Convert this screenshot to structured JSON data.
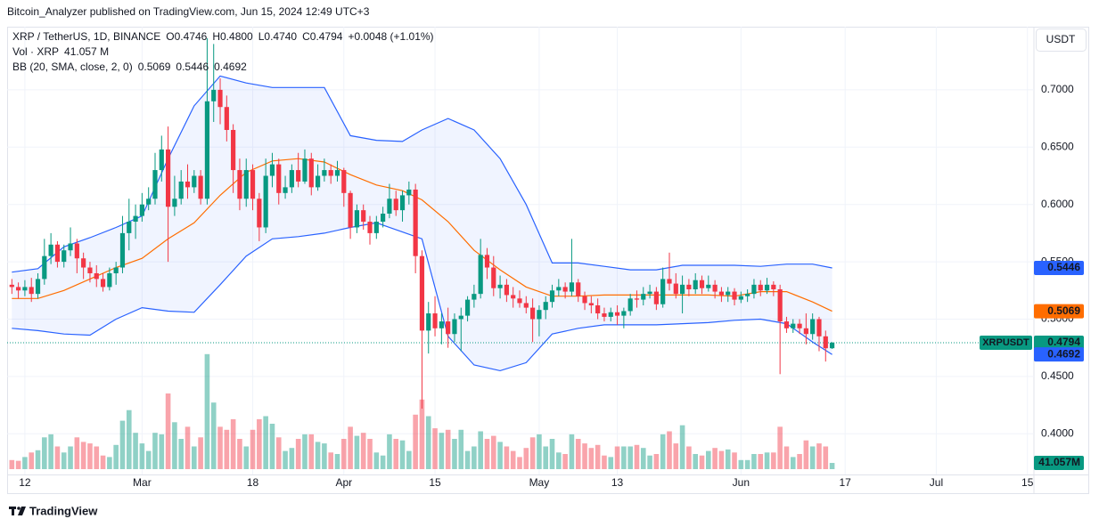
{
  "chart_data": {
    "type": "candlestick",
    "source": "Bitcoin_Analyzer published on TradingView.com, Jun 15, 2024 12:49 UTC+3",
    "brand": "TradingView",
    "currency": "USDT",
    "symbol_tag": "XRPUSDT",
    "legend": {
      "symbol": "XRP / TetherUS, 1D, BINANCE",
      "values": [
        "O0.4746",
        "H0.4800",
        "L0.4740",
        "C0.4794",
        "+0.0048 (+1.01%)"
      ],
      "volume_name": "Vol · XRP",
      "volume_value": "41.057 M"
    },
    "up_color": "#089981",
    "down_color": "#f23645",
    "x": [
      "2024-02-10",
      "2024-02-11",
      "2024-02-12",
      "2024-02-13",
      "2024-02-14",
      "2024-02-15",
      "2024-02-16",
      "2024-02-17",
      "2024-02-18",
      "2024-02-19",
      "2024-02-20",
      "2024-02-21",
      "2024-02-22",
      "2024-02-23",
      "2024-02-24",
      "2024-02-25",
      "2024-02-26",
      "2024-02-27",
      "2024-02-28",
      "2024-02-29",
      "2024-03-01",
      "2024-03-02",
      "2024-03-03",
      "2024-03-04",
      "2024-03-05",
      "2024-03-06",
      "2024-03-07",
      "2024-03-08",
      "2024-03-09",
      "2024-03-10",
      "2024-03-11",
      "2024-03-12",
      "2024-03-13",
      "2024-03-14",
      "2024-03-15",
      "2024-03-16",
      "2024-03-17",
      "2024-03-18",
      "2024-03-19",
      "2024-03-20",
      "2024-03-21",
      "2024-03-22",
      "2024-03-23",
      "2024-03-24",
      "2024-03-25",
      "2024-03-26",
      "2024-03-27",
      "2024-03-28",
      "2024-03-29",
      "2024-03-30",
      "2024-03-31",
      "2024-04-01",
      "2024-04-02",
      "2024-04-03",
      "2024-04-04",
      "2024-04-05",
      "2024-04-06",
      "2024-04-07",
      "2024-04-08",
      "2024-04-09",
      "2024-04-10",
      "2024-04-11",
      "2024-04-12",
      "2024-04-13",
      "2024-04-14",
      "2024-04-15",
      "2024-04-16",
      "2024-04-17",
      "2024-04-18",
      "2024-04-19",
      "2024-04-20",
      "2024-04-21",
      "2024-04-22",
      "2024-04-23",
      "2024-04-24",
      "2024-04-25",
      "2024-04-26",
      "2024-04-27",
      "2024-04-28",
      "2024-04-29",
      "2024-04-30",
      "2024-05-01",
      "2024-05-02",
      "2024-05-03",
      "2024-05-04",
      "2024-05-05",
      "2024-05-06",
      "2024-05-07",
      "2024-05-08",
      "2024-05-09",
      "2024-05-10",
      "2024-05-11",
      "2024-05-12",
      "2024-05-13",
      "2024-05-14",
      "2024-05-15",
      "2024-05-16",
      "2024-05-17",
      "2024-05-18",
      "2024-05-19",
      "2024-05-20",
      "2024-05-21",
      "2024-05-22",
      "2024-05-23",
      "2024-05-24",
      "2024-05-25",
      "2024-05-26",
      "2024-05-27",
      "2024-05-28",
      "2024-05-29",
      "2024-05-30",
      "2024-05-31",
      "2024-06-01",
      "2024-06-02",
      "2024-06-03",
      "2024-06-04",
      "2024-06-05",
      "2024-06-06",
      "2024-06-07",
      "2024-06-08",
      "2024-06-09",
      "2024-06-10",
      "2024-06-11",
      "2024-06-12",
      "2024-06-13",
      "2024-06-14",
      "2024-06-15"
    ],
    "open": [
      0.53,
      0.528,
      0.525,
      0.528,
      0.522,
      0.535,
      0.555,
      0.565,
      0.55,
      0.56,
      0.566,
      0.553,
      0.545,
      0.54,
      0.535,
      0.528,
      0.54,
      0.545,
      0.575,
      0.585,
      0.59,
      0.6,
      0.605,
      0.63,
      0.648,
      0.598,
      0.605,
      0.62,
      0.615,
      0.625,
      0.605,
      0.69,
      0.7,
      0.685,
      0.665,
      0.63,
      0.605,
      0.63,
      0.605,
      0.58,
      0.625,
      0.635,
      0.61,
      0.615,
      0.63,
      0.62,
      0.64,
      0.615,
      0.625,
      0.63,
      0.625,
      0.63,
      0.61,
      0.58,
      0.595,
      0.585,
      0.575,
      0.585,
      0.592,
      0.605,
      0.595,
      0.608,
      0.613,
      0.555,
      0.49,
      0.505,
      0.492,
      0.498,
      0.487,
      0.5,
      0.503,
      0.517,
      0.522,
      0.556,
      0.545,
      0.527,
      0.53,
      0.521,
      0.518,
      0.514,
      0.51,
      0.5,
      0.508,
      0.515,
      0.525,
      0.528,
      0.524,
      0.532,
      0.52,
      0.514,
      0.512,
      0.505,
      0.502,
      0.506,
      0.503,
      0.507,
      0.518,
      0.517,
      0.522,
      0.524,
      0.513,
      0.535,
      0.531,
      0.522,
      0.53,
      0.526,
      0.534,
      0.527,
      0.53,
      0.524,
      0.521,
      0.524,
      0.517,
      0.52,
      0.522,
      0.53,
      0.525,
      0.53,
      0.526,
      0.498,
      0.492,
      0.496,
      0.492,
      0.487,
      0.5,
      0.485,
      0.4746
    ],
    "high": [
      0.535,
      0.532,
      0.534,
      0.536,
      0.54,
      0.57,
      0.575,
      0.568,
      0.565,
      0.58,
      0.57,
      0.558,
      0.55,
      0.547,
      0.54,
      0.545,
      0.55,
      0.59,
      0.605,
      0.6,
      0.61,
      0.615,
      0.645,
      0.66,
      0.668,
      0.625,
      0.63,
      0.635,
      0.63,
      0.63,
      0.745,
      0.74,
      0.71,
      0.695,
      0.67,
      0.64,
      0.64,
      0.635,
      0.61,
      0.64,
      0.645,
      0.64,
      0.625,
      0.635,
      0.645,
      0.648,
      0.645,
      0.635,
      0.64,
      0.635,
      0.638,
      0.632,
      0.612,
      0.6,
      0.6,
      0.59,
      0.59,
      0.598,
      0.618,
      0.612,
      0.612,
      0.62,
      0.618,
      0.56,
      0.515,
      0.52,
      0.505,
      0.51,
      0.505,
      0.51,
      0.52,
      0.53,
      0.57,
      0.562,
      0.555,
      0.538,
      0.535,
      0.528,
      0.525,
      0.52,
      0.518,
      0.512,
      0.52,
      0.53,
      0.535,
      0.532,
      0.57,
      0.535,
      0.524,
      0.52,
      0.518,
      0.51,
      0.51,
      0.512,
      0.51,
      0.522,
      0.525,
      0.528,
      0.53,
      0.528,
      0.545,
      0.558,
      0.54,
      0.538,
      0.535,
      0.54,
      0.538,
      0.538,
      0.534,
      0.528,
      0.528,
      0.527,
      0.524,
      0.526,
      0.535,
      0.534,
      0.536,
      0.533,
      0.53,
      0.502,
      0.5,
      0.5,
      0.505,
      0.505,
      0.502,
      0.49,
      0.48
    ],
    "low": [
      0.522,
      0.518,
      0.52,
      0.515,
      0.518,
      0.53,
      0.548,
      0.545,
      0.545,
      0.555,
      0.54,
      0.535,
      0.532,
      0.528,
      0.524,
      0.525,
      0.53,
      0.54,
      0.56,
      0.57,
      0.585,
      0.595,
      0.6,
      0.62,
      0.55,
      0.59,
      0.6,
      0.605,
      0.61,
      0.6,
      0.6,
      0.672,
      0.67,
      0.655,
      0.61,
      0.595,
      0.598,
      0.595,
      0.568,
      0.575,
      0.615,
      0.6,
      0.605,
      0.61,
      0.615,
      0.618,
      0.608,
      0.612,
      0.62,
      0.618,
      0.62,
      0.598,
      0.57,
      0.575,
      0.578,
      0.565,
      0.57,
      0.58,
      0.588,
      0.59,
      0.585,
      0.6,
      0.54,
      0.422,
      0.47,
      0.485,
      0.478,
      0.475,
      0.48,
      0.472,
      0.498,
      0.51,
      0.518,
      0.535,
      0.52,
      0.518,
      0.515,
      0.51,
      0.51,
      0.505,
      0.48,
      0.485,
      0.5,
      0.51,
      0.52,
      0.518,
      0.52,
      0.515,
      0.508,
      0.505,
      0.5,
      0.498,
      0.498,
      0.495,
      0.492,
      0.503,
      0.51,
      0.512,
      0.518,
      0.508,
      0.51,
      0.525,
      0.518,
      0.505,
      0.52,
      0.522,
      0.522,
      0.524,
      0.518,
      0.515,
      0.515,
      0.512,
      0.514,
      0.515,
      0.518,
      0.52,
      0.522,
      0.52,
      0.452,
      0.488,
      0.488,
      0.487,
      0.478,
      0.482,
      0.472,
      0.463,
      0.474
    ],
    "close": [
      0.528,
      0.525,
      0.528,
      0.522,
      0.535,
      0.555,
      0.565,
      0.55,
      0.56,
      0.566,
      0.553,
      0.545,
      0.54,
      0.535,
      0.528,
      0.54,
      0.545,
      0.575,
      0.585,
      0.59,
      0.6,
      0.605,
      0.63,
      0.648,
      0.598,
      0.605,
      0.62,
      0.615,
      0.625,
      0.605,
      0.69,
      0.7,
      0.685,
      0.665,
      0.63,
      0.605,
      0.63,
      0.605,
      0.58,
      0.625,
      0.635,
      0.61,
      0.615,
      0.63,
      0.62,
      0.64,
      0.615,
      0.625,
      0.63,
      0.625,
      0.63,
      0.61,
      0.58,
      0.595,
      0.585,
      0.575,
      0.585,
      0.592,
      0.605,
      0.595,
      0.608,
      0.613,
      0.555,
      0.49,
      0.505,
      0.492,
      0.498,
      0.487,
      0.5,
      0.503,
      0.517,
      0.522,
      0.556,
      0.545,
      0.527,
      0.53,
      0.521,
      0.518,
      0.514,
      0.51,
      0.5,
      0.508,
      0.515,
      0.525,
      0.528,
      0.524,
      0.532,
      0.52,
      0.514,
      0.512,
      0.505,
      0.502,
      0.506,
      0.503,
      0.507,
      0.518,
      0.517,
      0.522,
      0.524,
      0.513,
      0.535,
      0.531,
      0.522,
      0.53,
      0.526,
      0.534,
      0.527,
      0.53,
      0.524,
      0.521,
      0.524,
      0.517,
      0.52,
      0.522,
      0.53,
      0.525,
      0.53,
      0.526,
      0.498,
      0.492,
      0.496,
      0.492,
      0.487,
      0.5,
      0.485,
      0.4746,
      0.4794
    ],
    "volume": [
      60,
      55,
      80,
      110,
      125,
      210,
      230,
      150,
      110,
      150,
      210,
      180,
      170,
      150,
      90,
      80,
      160,
      320,
      390,
      240,
      170,
      120,
      240,
      230,
      500,
      310,
      200,
      280,
      150,
      210,
      760,
      440,
      280,
      260,
      330,
      200,
      150,
      260,
      330,
      350,
      300,
      210,
      120,
      140,
      200,
      230,
      230,
      180,
      170,
      110,
      100,
      200,
      280,
      220,
      240,
      200,
      110,
      90,
      230,
      200,
      190,
      120,
      360,
      460,
      350,
      270,
      240,
      260,
      200,
      260,
      120,
      150,
      250,
      200,
      220,
      180,
      150,
      120,
      80,
      140,
      210,
      230,
      150,
      200,
      110,
      100,
      230,
      200,
      170,
      140,
      160,
      90,
      80,
      150,
      150,
      150,
      160,
      140,
      90,
      100,
      230,
      250,
      170,
      290,
      150,
      100,
      90,
      120,
      140,
      120,
      130,
      110,
      60,
      60,
      100,
      100,
      110,
      110,
      280,
      150,
      80,
      100,
      190,
      150,
      170,
      150,
      41.057
    ],
    "volume_last_label": "41.057M",
    "bb": {
      "name": "BB (20, SMA, close, 2, 0)",
      "band_color": "#2962ff",
      "middle_color": "#ff6d00",
      "x": [
        "2024-02-10",
        "2024-02-14",
        "2024-02-18",
        "2024-02-22",
        "2024-02-26",
        "2024-03-01",
        "2024-03-05",
        "2024-03-09",
        "2024-03-13",
        "2024-03-17",
        "2024-03-21",
        "2024-03-25",
        "2024-03-29",
        "2024-04-02",
        "2024-04-06",
        "2024-04-10",
        "2024-04-13",
        "2024-04-17",
        "2024-04-21",
        "2024-04-25",
        "2024-04-29",
        "2024-05-03",
        "2024-05-07",
        "2024-05-11",
        "2024-05-15",
        "2024-05-19",
        "2024-05-23",
        "2024-05-27",
        "2024-05-31",
        "2024-06-04",
        "2024-06-08",
        "2024-06-12",
        "2024-06-15"
      ],
      "upper": [
        0.541,
        0.544,
        0.563,
        0.571,
        0.58,
        0.59,
        0.64,
        0.686,
        0.712,
        0.706,
        0.702,
        0.702,
        0.702,
        0.66,
        0.656,
        0.655,
        0.665,
        0.675,
        0.665,
        0.64,
        0.6,
        0.549,
        0.549,
        0.546,
        0.543,
        0.543,
        0.547,
        0.547,
        0.547,
        0.546,
        0.548,
        0.548,
        0.5446
      ],
      "middle": [
        0.518,
        0.518,
        0.525,
        0.535,
        0.545,
        0.553,
        0.57,
        0.584,
        0.608,
        0.628,
        0.638,
        0.64,
        0.637,
        0.626,
        0.617,
        0.612,
        0.604,
        0.585,
        0.56,
        0.543,
        0.528,
        0.52,
        0.52,
        0.521,
        0.521,
        0.521,
        0.521,
        0.521,
        0.52,
        0.524,
        0.524,
        0.515,
        0.5069
      ],
      "lower": [
        0.492,
        0.49,
        0.487,
        0.486,
        0.5,
        0.51,
        0.507,
        0.506,
        0.53,
        0.555,
        0.57,
        0.572,
        0.575,
        0.58,
        0.584,
        0.576,
        0.57,
        0.485,
        0.46,
        0.455,
        0.462,
        0.487,
        0.492,
        0.495,
        0.495,
        0.495,
        0.496,
        0.497,
        0.499,
        0.5,
        0.496,
        0.48,
        0.4692
      ]
    },
    "xlim": [
      "2024-02-09",
      "2024-07-16"
    ],
    "xticks": [
      {
        "value": "2024-02-12",
        "label": "12"
      },
      {
        "value": "2024-03-01",
        "label": "Mar"
      },
      {
        "value": "2024-03-18",
        "label": "18"
      },
      {
        "value": "2024-04-01",
        "label": "Apr"
      },
      {
        "value": "2024-04-15",
        "label": "15"
      },
      {
        "value": "2024-05-01",
        "label": "May"
      },
      {
        "value": "2024-05-13",
        "label": "13"
      },
      {
        "value": "2024-06-01",
        "label": "Jun"
      },
      {
        "value": "2024-06-17",
        "label": "17"
      },
      {
        "value": "2024-07-01",
        "label": "Jul"
      },
      {
        "value": "2024-07-15",
        "label": "15"
      }
    ],
    "ylim": [
      0.3645,
      0.7535
    ],
    "yticks": [
      {
        "value": 0.4,
        "label": "0.4000"
      },
      {
        "value": 0.45,
        "label": "0.4500"
      },
      {
        "value": 0.5,
        "label": "0.5000"
      },
      {
        "value": 0.55,
        "label": "0.5500"
      },
      {
        "value": 0.6,
        "label": "0.6000"
      },
      {
        "value": 0.65,
        "label": "0.6500"
      },
      {
        "value": 0.7,
        "label": "0.7000"
      }
    ],
    "grid": true
  }
}
